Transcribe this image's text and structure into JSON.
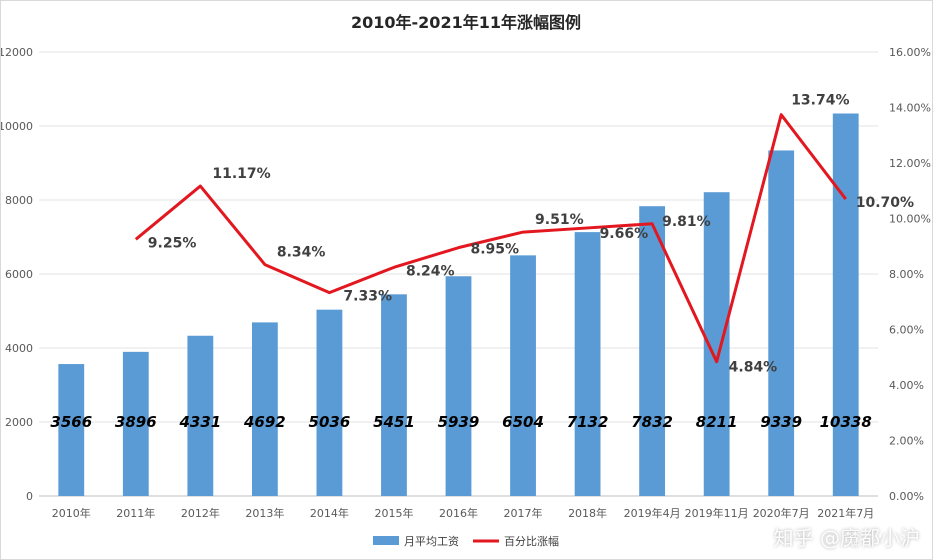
{
  "chart_data": {
    "type": "bar",
    "title": "2010年-2021年11年涨幅图例",
    "categories": [
      "2010年",
      "2011年",
      "2012年",
      "2013年",
      "2014年",
      "2015年",
      "2016年",
      "2017年",
      "2018年",
      "2019年4月",
      "2019年11月",
      "2020年7月",
      "2021年7月"
    ],
    "series": [
      {
        "name": "月平均工资",
        "type": "bar",
        "axis": "left",
        "color": "#5b9bd5",
        "values": [
          3566,
          3896,
          4331,
          4692,
          5036,
          5451,
          5939,
          6504,
          7132,
          7832,
          8211,
          9339,
          10338
        ],
        "labels": [
          "3566",
          "3896",
          "4331",
          "4692",
          "5036",
          "5451",
          "5939",
          "6504",
          "7132",
          "7832",
          "8211",
          "9339",
          "10338"
        ]
      },
      {
        "name": "百分比涨幅",
        "type": "line",
        "axis": "right",
        "color": "#e3171f",
        "values": [
          null,
          9.25,
          11.17,
          8.34,
          7.33,
          8.24,
          8.95,
          9.51,
          9.66,
          9.81,
          4.84,
          13.74,
          10.7
        ],
        "labels": [
          "",
          "9.25%",
          "11.17%",
          "8.34%",
          "7.33%",
          "8.24%",
          "8.95%",
          "9.51%",
          "9.66%",
          "9.81%",
          "4.84%",
          "13.74%",
          "10.70%"
        ]
      }
    ],
    "y_left": {
      "ylim": [
        0,
        12000
      ],
      "ticks": [
        "0",
        "2000",
        "4000",
        "6000",
        "8000",
        "10000",
        "12000"
      ]
    },
    "y_right": {
      "ylim": [
        0,
        16
      ],
      "ticks": [
        "0.00%",
        "2.00%",
        "4.00%",
        "6.00%",
        "8.00%",
        "10.00%",
        "12.00%",
        "14.00%",
        "16.00%"
      ]
    },
    "grid": true,
    "legend_position": "bottom"
  },
  "watermark": "知乎 @魔都小沪"
}
